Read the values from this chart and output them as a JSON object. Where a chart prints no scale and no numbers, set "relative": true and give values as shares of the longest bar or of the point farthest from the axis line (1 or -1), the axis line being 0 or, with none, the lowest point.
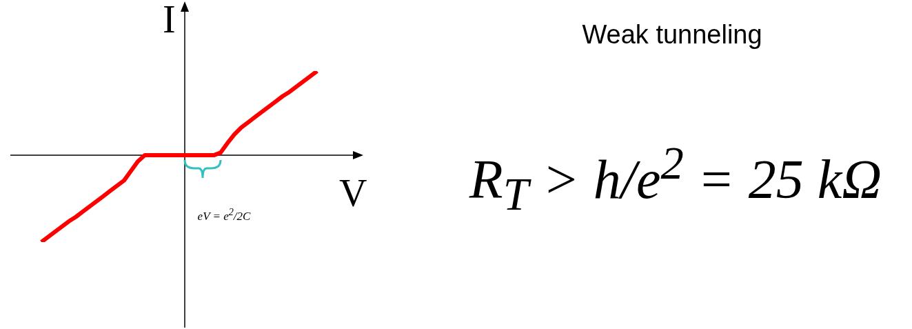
{
  "chart_data": {
    "type": "line",
    "relative": true,
    "xlabel": "V",
    "ylabel": "I",
    "categories": [
      null,
      null,
      null,
      null,
      null,
      null,
      null,
      null,
      null,
      null,
      null,
      null,
      null,
      null,
      null,
      null,
      null,
      null,
      null,
      null,
      null,
      null,
      null,
      null,
      null,
      null,
      null,
      null,
      null,
      null,
      null,
      null,
      null,
      null,
      null,
      null,
      null,
      null,
      null,
      null,
      null
    ],
    "series": [
      {
        "color": "#ff0000",
        "values": [
          -1.0,
          -0.94,
          -0.88,
          -0.82,
          -0.76,
          -0.71,
          -0.65,
          -0.59,
          -0.53,
          -0.47,
          -0.41,
          -0.35,
          -0.29,
          -0.18,
          -0.07,
          0,
          0,
          0,
          0,
          0,
          0,
          0,
          0,
          0,
          0,
          0,
          0.03,
          0.14,
          0.24,
          0.32,
          0.38,
          0.44,
          0.5,
          0.56,
          0.62,
          0.68,
          0.73,
          0.79,
          0.85,
          0.91,
          0.97
        ]
      }
    ],
    "annotations": [
      "Weak tunneling",
      "R$_{T}$ > h/e$^{2}$ = 25 kΩ",
      "eV = e$^{2}$/2C"
    ],
    "legend": false,
    "marker": "none",
    "line_style": "solid"
  }
}
